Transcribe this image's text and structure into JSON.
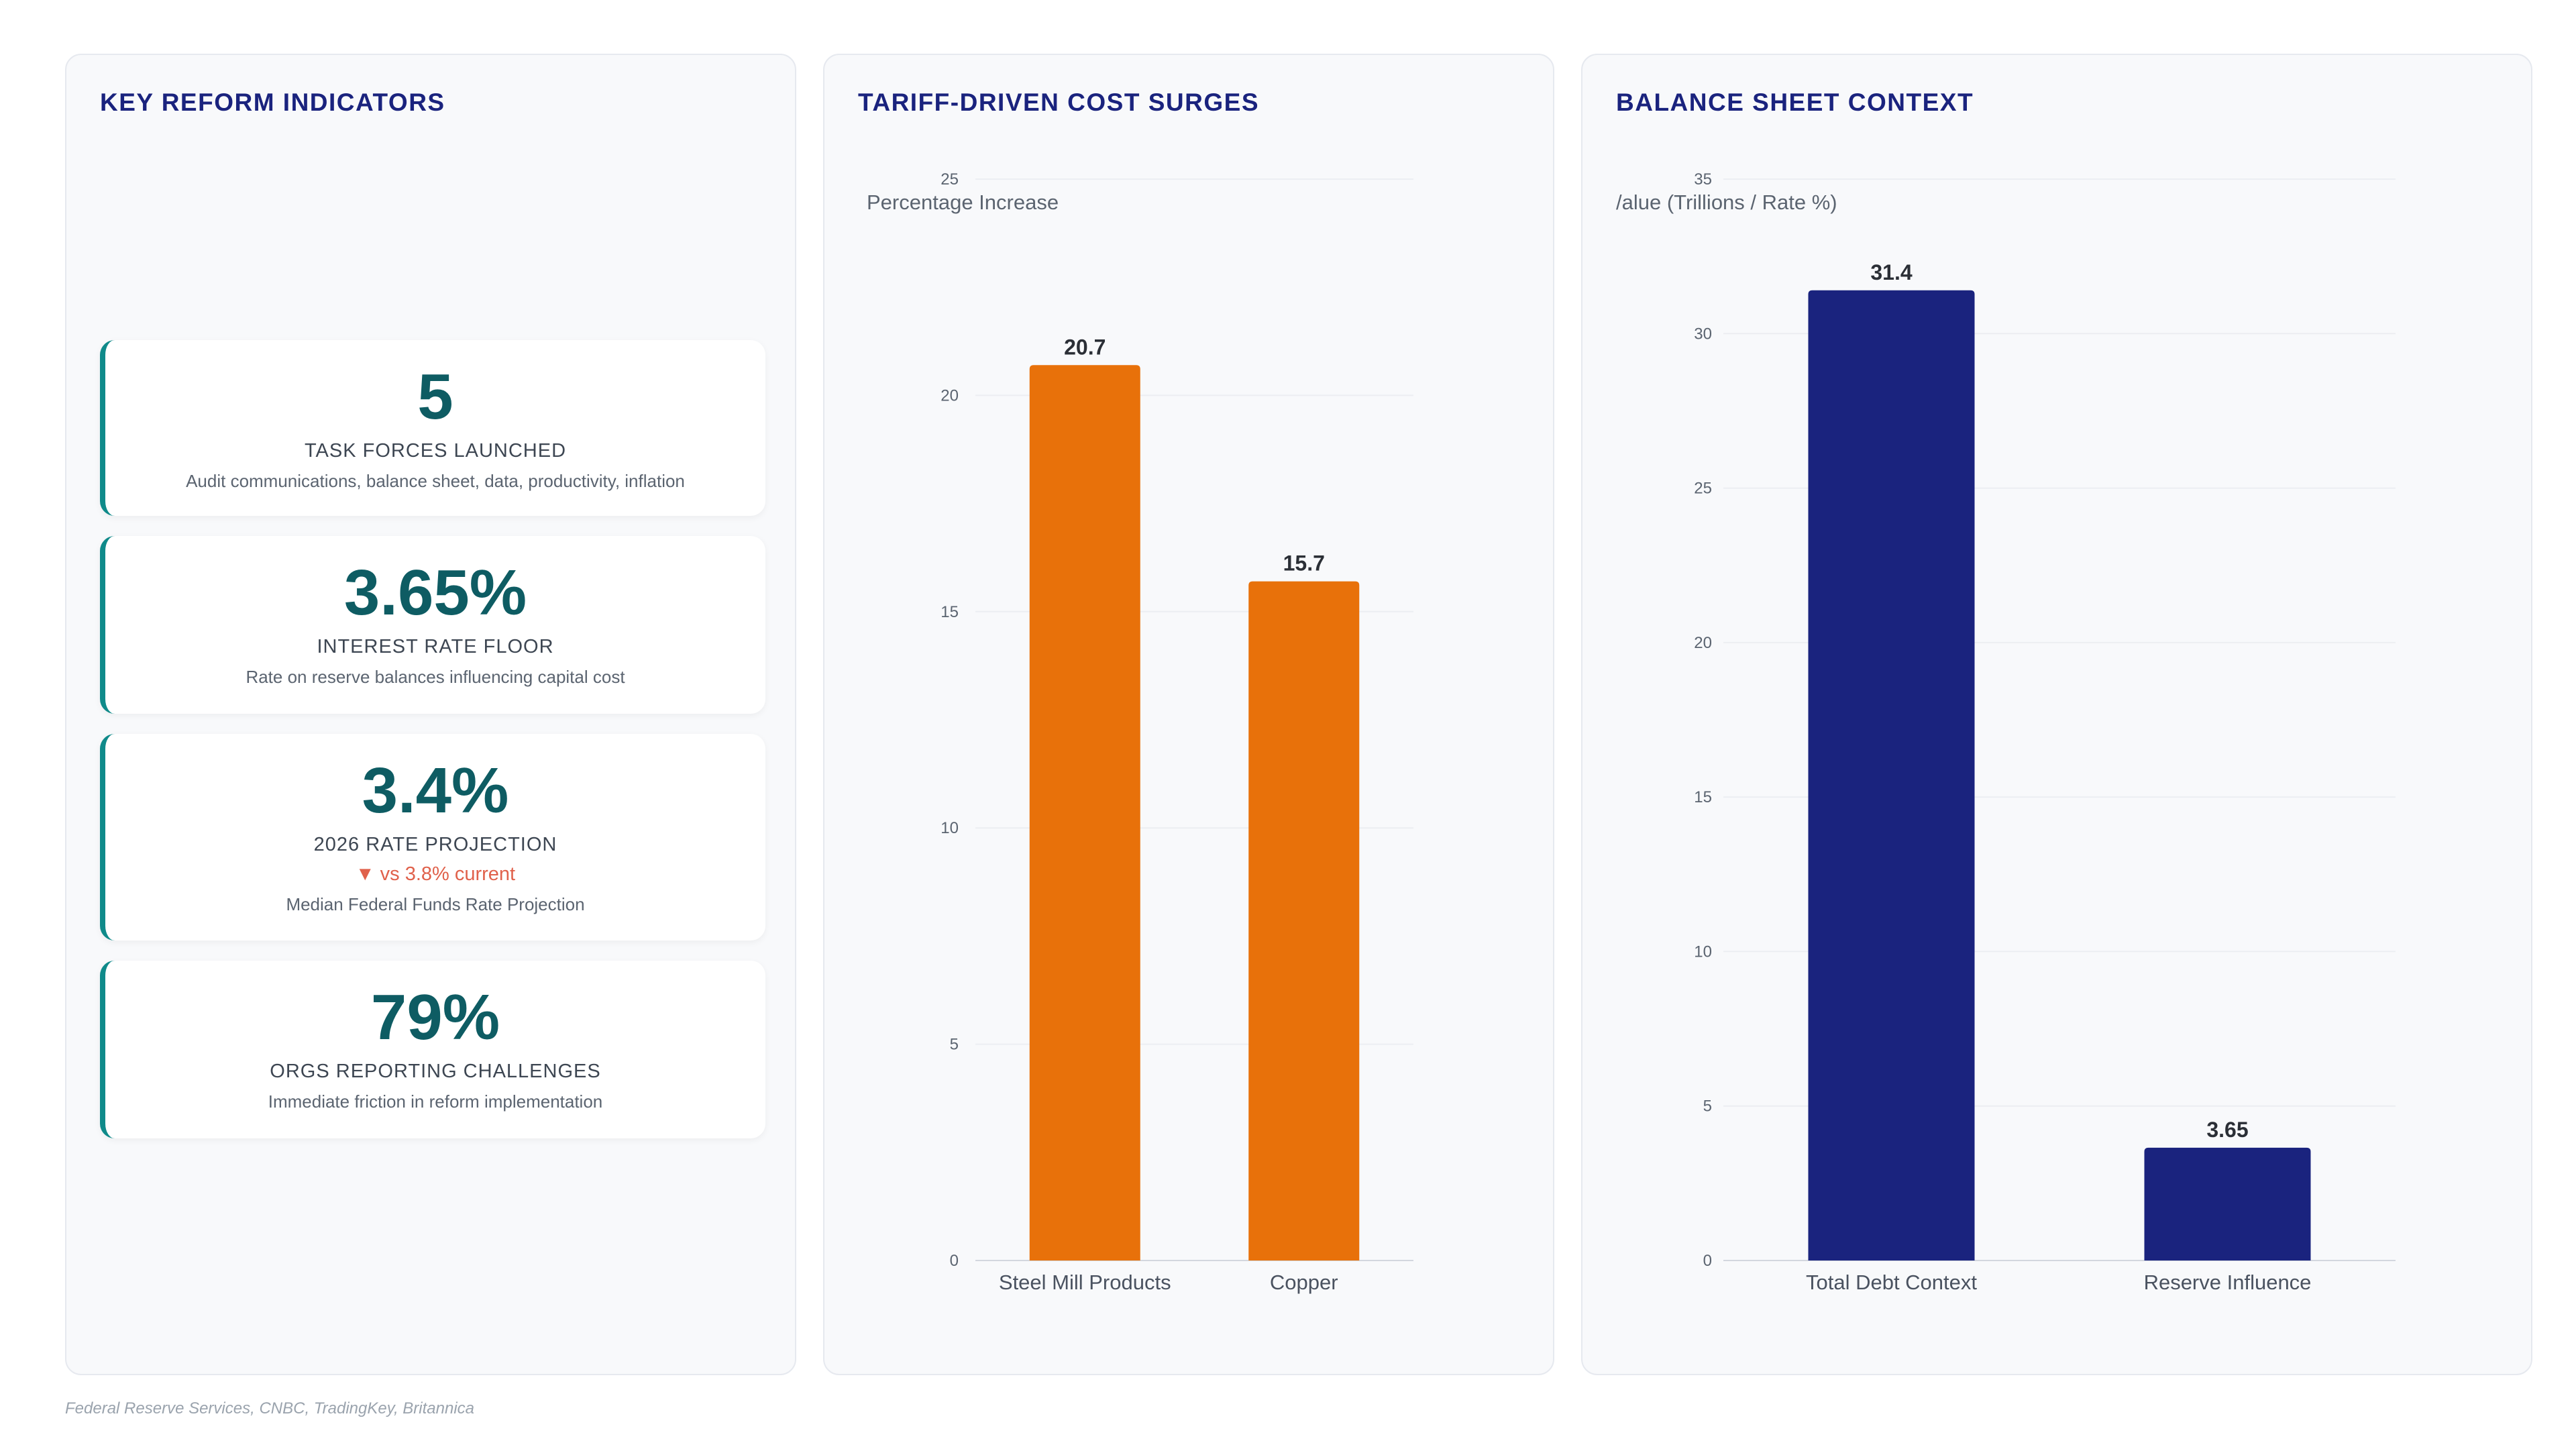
{
  "kpi_panel": {
    "title": "KEY REFORM INDICATORS",
    "cards": [
      {
        "value": "5",
        "label": "TASK FORCES LAUNCHED",
        "desc": "Audit communications, balance sheet, data, productivity, inflation"
      },
      {
        "value": "3.65%",
        "label": "INTEREST RATE FLOOR",
        "desc": "Rate on reserve balances influencing capital cost"
      },
      {
        "value": "3.4%",
        "label": "2026 RATE PROJECTION",
        "delta": "▼ vs 3.8% current",
        "desc": "Median Federal Funds Rate Projection"
      },
      {
        "value": "79%",
        "label": "ORGS REPORTING CHALLENGES",
        "desc": "Immediate friction in reform implementation"
      }
    ]
  },
  "tariff_panel": {
    "title": "TARIFF-DRIVEN COST SURGES"
  },
  "balance_panel": {
    "title": "BALANCE SHEET CONTEXT"
  },
  "source": "Federal Reserve Services, CNBC, TradingKey, Britannica",
  "chart_data": [
    {
      "type": "bar",
      "title": "TARIFF-DRIVEN COST SURGES",
      "ylabel": "Percentage Increase",
      "categories": [
        "Steel Mill Products",
        "Copper"
      ],
      "values": [
        20.7,
        15.7
      ],
      "value_labels": [
        "20.7",
        "15.7"
      ],
      "ylim": [
        0,
        25
      ],
      "yticks": [
        0,
        5,
        10,
        15,
        20,
        25
      ],
      "color": "#e8710a",
      "grid": true,
      "legend": "none"
    },
    {
      "type": "bar",
      "title": "BALANCE SHEET CONTEXT",
      "ylabel": "/alue (Trillions / Rate %)",
      "categories": [
        "Total Debt Context",
        "Reserve Influence"
      ],
      "values": [
        31.4,
        3.65
      ],
      "value_labels": [
        "31.4",
        "3.65"
      ],
      "ylim": [
        0,
        35
      ],
      "yticks": [
        0,
        5,
        10,
        15,
        20,
        25,
        30,
        35
      ],
      "color": "#1a237e",
      "grid": true,
      "legend": "none"
    }
  ]
}
